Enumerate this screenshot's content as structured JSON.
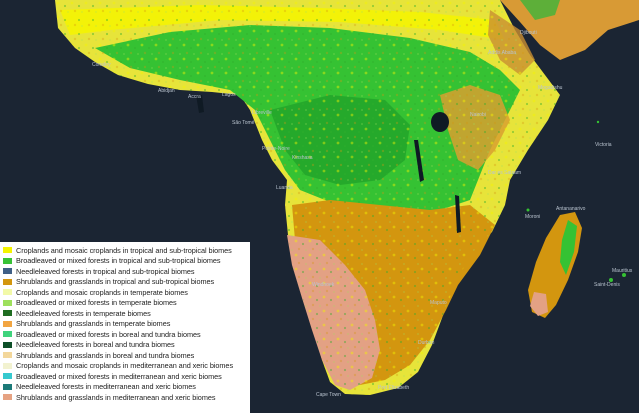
{
  "map": {
    "place_labels": [
      {
        "id": "mauritius",
        "text": "Mauritius"
      },
      {
        "id": "saint-denis",
        "text": "Saint-Denis"
      },
      {
        "id": "antananarivo",
        "text": "Antananarivo"
      },
      {
        "id": "victoria",
        "text": "Victoria"
      },
      {
        "id": "moroni",
        "text": "Moroni"
      },
      {
        "id": "dar-es-salaam",
        "text": "Dar es Salaam"
      },
      {
        "id": "nairobi",
        "text": "Nairobi"
      },
      {
        "id": "kinshasa",
        "text": "Kinshasa"
      },
      {
        "id": "luanda",
        "text": "Luanda"
      },
      {
        "id": "windhoek",
        "text": "Windhoek"
      },
      {
        "id": "maputo",
        "text": "Maputo"
      },
      {
        "id": "cape-town",
        "text": "Cape Town"
      },
      {
        "id": "port-elizabeth",
        "text": "Port Elizabeth"
      },
      {
        "id": "lagos",
        "text": "Lagos"
      },
      {
        "id": "abidjan",
        "text": "Abidjan"
      },
      {
        "id": "accra",
        "text": "Accra"
      },
      {
        "id": "conakry",
        "text": "Conakry"
      },
      {
        "id": "addis-ababa",
        "text": "Addis Ababa"
      },
      {
        "id": "sao-tome",
        "text": "São Tomé"
      },
      {
        "id": "libreville",
        "text": "Libreville"
      },
      {
        "id": "pointe-noire",
        "text": "Pointe-Noire"
      },
      {
        "id": "durban",
        "text": "Durban"
      },
      {
        "id": "mogadishu",
        "text": "Mogadishu"
      },
      {
        "id": "djibouti",
        "text": "Djibouti"
      }
    ]
  },
  "legend": {
    "items": [
      {
        "label": "Croplands and mosaic croplands in tropical and sub-tropical biomes",
        "color": "#f4f400"
      },
      {
        "label": "Broadleaved or mixed forests in tropical and sub-tropical biomes",
        "color": "#38c236"
      },
      {
        "label": "Needleleaved forests in tropical and sub-tropical biomes",
        "color": "#3f5f86"
      },
      {
        "label": "Shrublands and grasslands in tropical and sub-tropical biomes",
        "color": "#d3960f"
      },
      {
        "label": "Croplands and mosaic croplands in temperate biomes",
        "color": "#f2f9a8"
      },
      {
        "label": "Broadleaved or mixed forests in temperate biomes",
        "color": "#9ee05c"
      },
      {
        "label": "Needleleaved forests in temperate biomes",
        "color": "#1f6d21"
      },
      {
        "label": "Shrublands and grasslands in temperate biomes",
        "color": "#f2a541"
      },
      {
        "label": "Broadleaved or mixed forests in boreal and tundra biomes",
        "color": "#3fd37c"
      },
      {
        "label": "Needleleaved forests in boreal and tundra biomes",
        "color": "#0d4f28"
      },
      {
        "label": "Shrublands and grasslands in boreal and tundra biomes",
        "color": "#f3d79b"
      },
      {
        "label": "Croplands and mosaic croplands in mediterranean and xeric biomes",
        "color": "#f2f2d0"
      },
      {
        "label": "Broadleaved or mixed forests in mediterranean and xeric biomes",
        "color": "#36c9cf"
      },
      {
        "label": "Needleleaved forests in mediterranean and xeric biomes",
        "color": "#1c7a78"
      },
      {
        "label": "Shrublands and grasslands in mediterranean and xeric biomes",
        "color": "#e6a282"
      }
    ]
  }
}
